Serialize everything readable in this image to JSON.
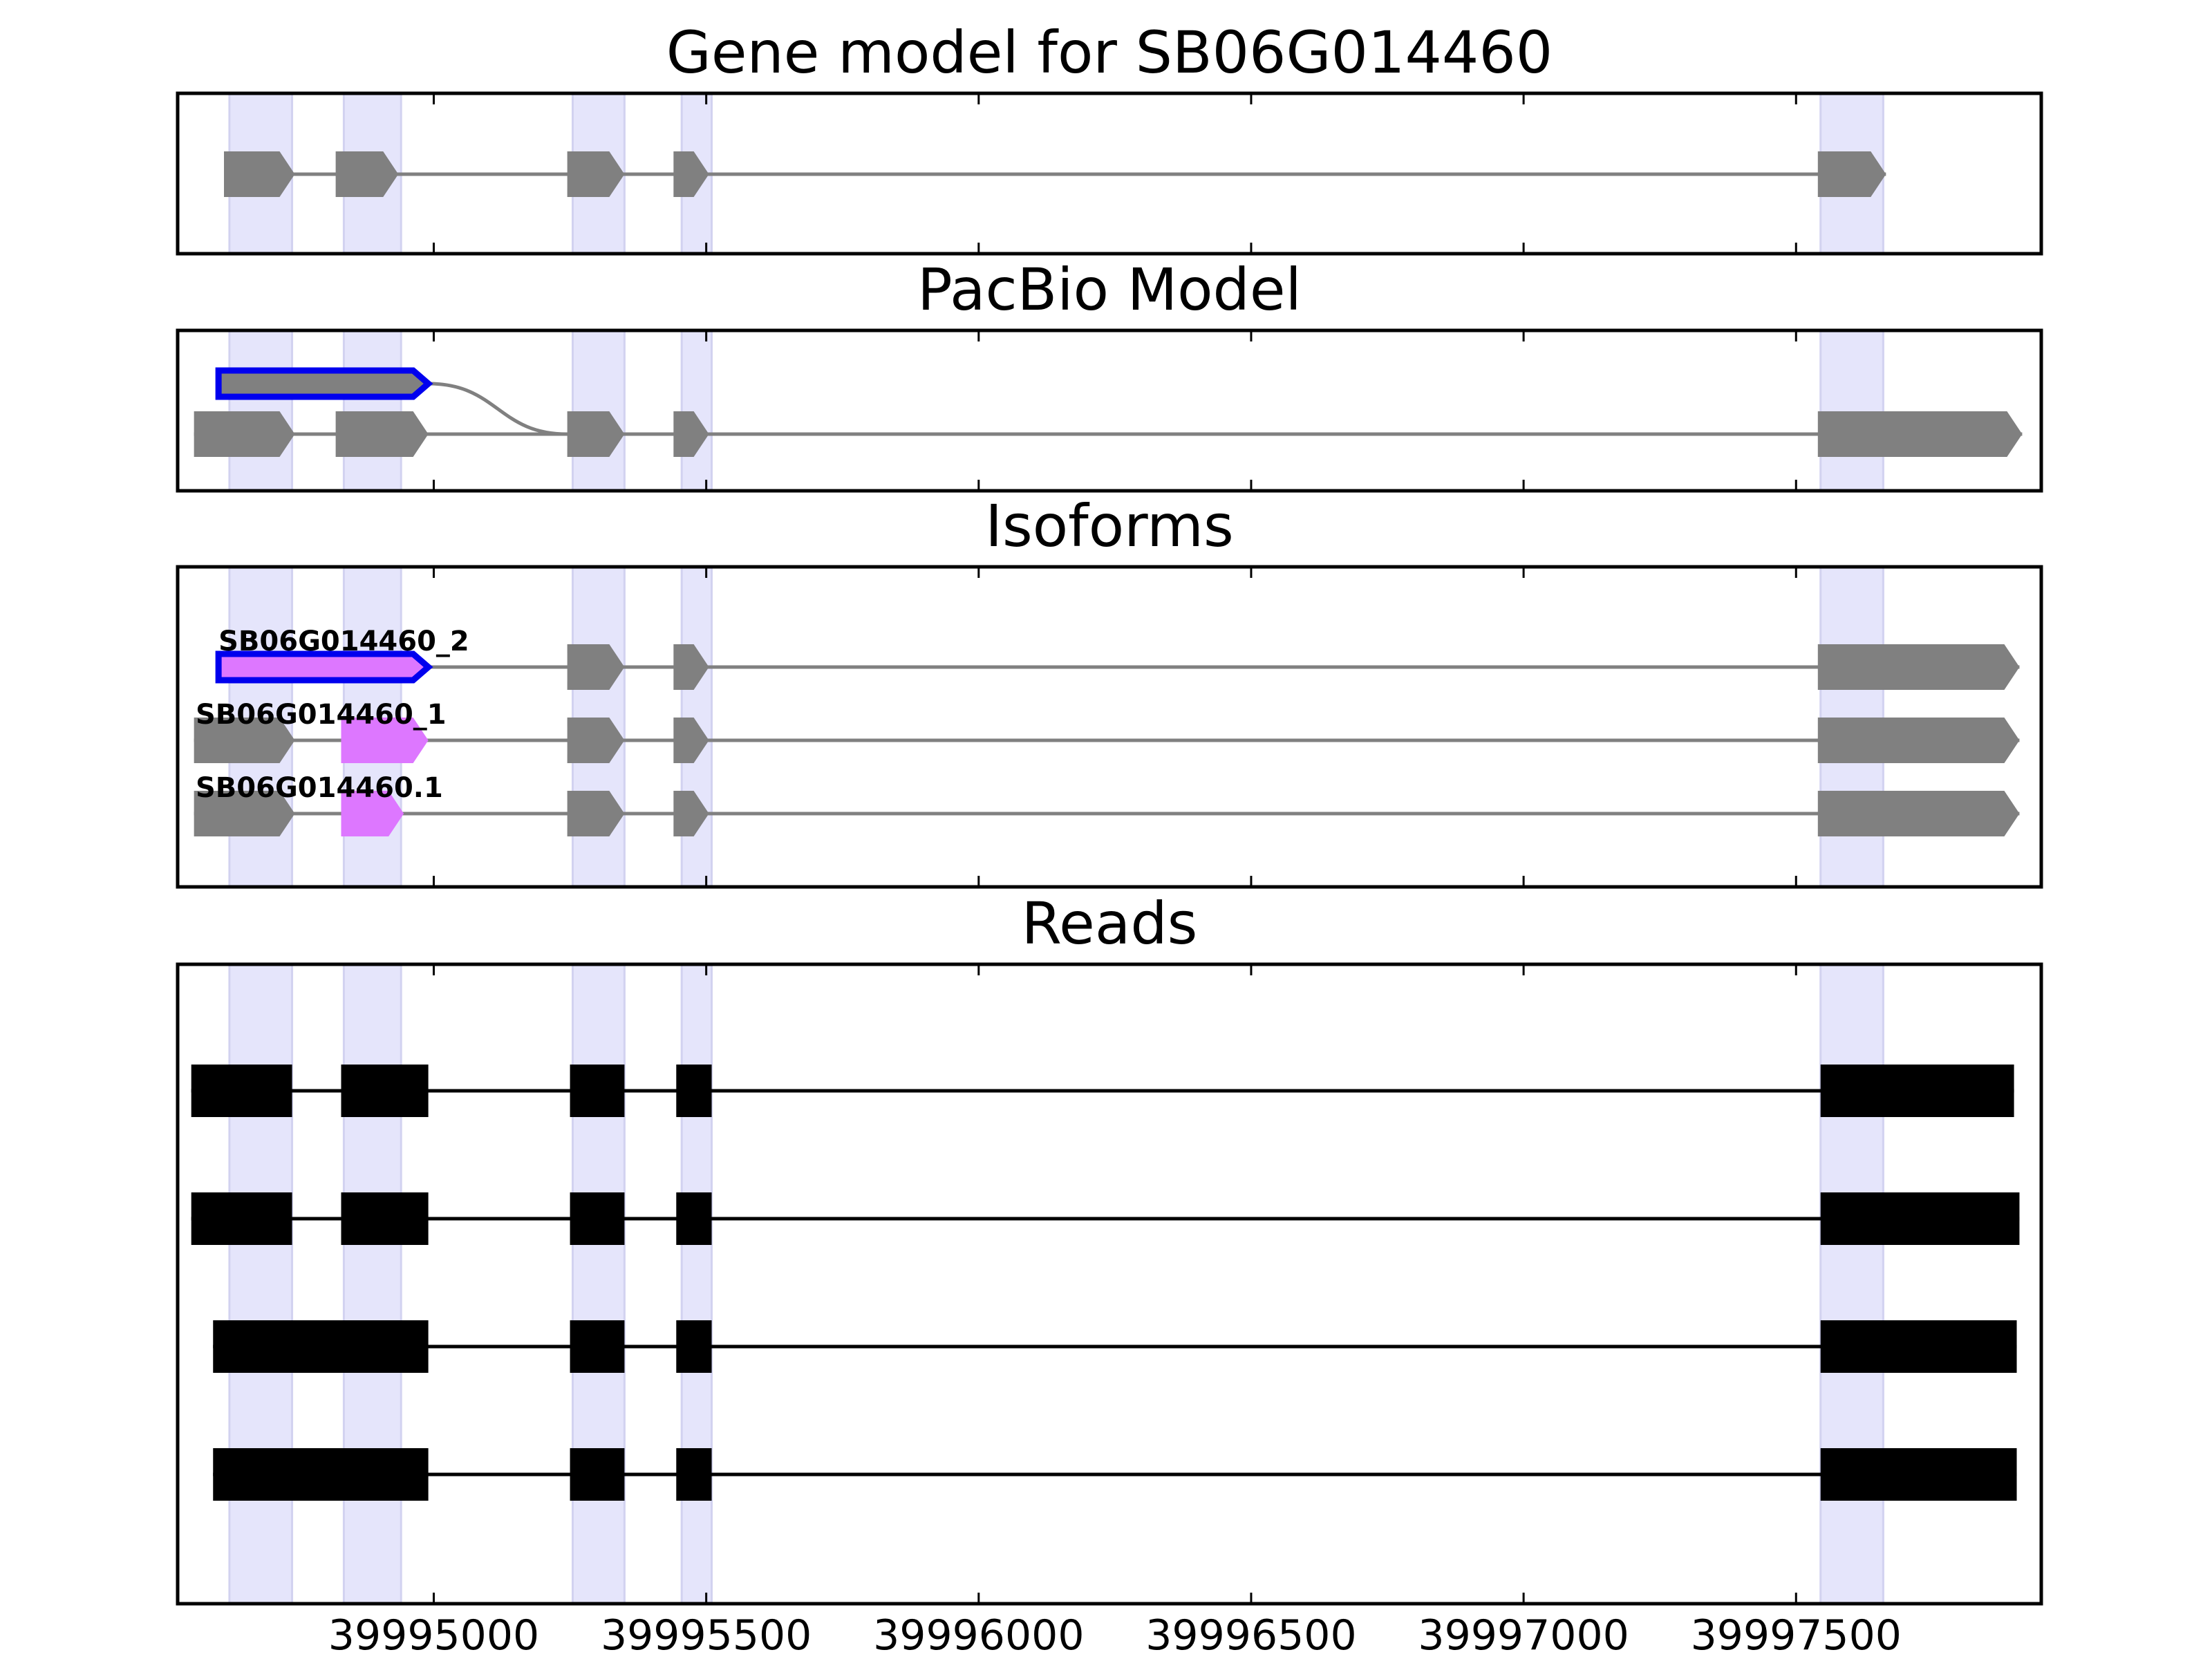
{
  "chart_data": {
    "type": "gene_model",
    "x_ticks": [
      "39995000",
      "39995500",
      "39996000",
      "39996500",
      "39997000",
      "39997500"
    ],
    "xlim": [
      39994530,
      39997950
    ],
    "colors": {
      "feature": "#808080",
      "highlight_band": "#e5e5fb",
      "selected_outline": "#0000ee",
      "novel_exon": "#dd77ff",
      "read": "#000000"
    },
    "highlight_regions": [
      [
        39994625,
        39994740
      ],
      [
        39994835,
        39994940
      ],
      [
        39995255,
        39995350
      ],
      [
        39995455,
        39995510
      ],
      [
        39997545,
        39997660
      ]
    ],
    "panels": [
      {
        "title": "Gene model for SB06G014460",
        "tracks": [
          {
            "kind": "gene",
            "exons": [
              [
                39994615,
                39994745
              ],
              [
                39994820,
                39994935
              ],
              [
                39995245,
                39995350
              ],
              [
                39995440,
                39995505
              ],
              [
                39997540,
                39997665
              ]
            ]
          }
        ]
      },
      {
        "title": "PacBio Model",
        "tracks": [
          {
            "kind": "pacbio-upper",
            "selected": true,
            "exons": [
              [
                39994605,
                39994990
              ]
            ],
            "joins_to_row": 1,
            "joins_to_x": 39995245
          },
          {
            "kind": "pacbio-lower",
            "exons": [
              [
                39994560,
                39994745
              ],
              [
                39994820,
                39994990
              ],
              [
                39995245,
                39995350
              ],
              [
                39995440,
                39995505
              ],
              [
                39997540,
                39997915
              ]
            ]
          }
        ]
      },
      {
        "title": "Isoforms",
        "tracks": [
          {
            "kind": "isoform",
            "label": "SB06G014460_2",
            "exons": [
              [
                39994605,
                39994990,
                "selected"
              ],
              [
                39995245,
                39995350
              ],
              [
                39995440,
                39995505
              ],
              [
                39997540,
                39997910
              ]
            ]
          },
          {
            "kind": "isoform",
            "label": "SB06G014460_1",
            "exons": [
              [
                39994560,
                39994745
              ],
              [
                39994830,
                39994990,
                "novel"
              ],
              [
                39995245,
                39995350
              ],
              [
                39995440,
                39995505
              ],
              [
                39997540,
                39997910
              ]
            ]
          },
          {
            "kind": "isoform",
            "label": "SB06G014460.1",
            "exons": [
              [
                39994560,
                39994745
              ],
              [
                39994830,
                39994945,
                "novel"
              ],
              [
                39995245,
                39995350
              ],
              [
                39995440,
                39995505
              ],
              [
                39997540,
                39997910
              ]
            ]
          }
        ]
      },
      {
        "title": "Reads",
        "tracks": [
          {
            "kind": "read",
            "exons": [
              [
                39994555,
                39994740
              ],
              [
                39994830,
                39994990
              ],
              [
                39995250,
                39995350
              ],
              [
                39995445,
                39995510
              ],
              [
                39997545,
                39997900
              ]
            ]
          },
          {
            "kind": "read",
            "exons": [
              [
                39994555,
                39994740
              ],
              [
                39994830,
                39994990
              ],
              [
                39995250,
                39995350
              ],
              [
                39995445,
                39995510
              ],
              [
                39997545,
                39997910
              ]
            ]
          },
          {
            "kind": "read",
            "exons": [
              [
                39994595,
                39994990
              ],
              [
                39995250,
                39995350
              ],
              [
                39995445,
                39995510
              ],
              [
                39997545,
                39997905
              ]
            ]
          },
          {
            "kind": "read",
            "exons": [
              [
                39994595,
                39994990
              ],
              [
                39995250,
                39995350
              ],
              [
                39995445,
                39995510
              ],
              [
                39997545,
                39997905
              ]
            ]
          }
        ]
      }
    ]
  }
}
